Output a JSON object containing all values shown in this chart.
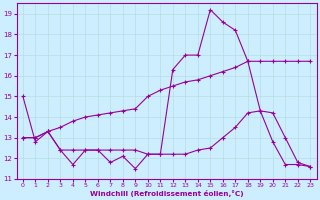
{
  "xlabel": "Windchill (Refroidissement éolien,°C)",
  "bg_color": "#cceeff",
  "line_color": "#990099",
  "grid_color": "#b8dde0",
  "xlim": [
    -0.5,
    23.5
  ],
  "ylim": [
    11,
    19.5
  ],
  "yticks": [
    11,
    12,
    13,
    14,
    15,
    16,
    17,
    18,
    19
  ],
  "xticks": [
    0,
    1,
    2,
    3,
    4,
    5,
    6,
    7,
    8,
    9,
    10,
    11,
    12,
    13,
    14,
    15,
    16,
    17,
    18,
    19,
    20,
    21,
    22,
    23
  ],
  "series1_x": [
    0,
    1,
    2,
    3,
    4,
    5,
    6,
    7,
    8,
    9,
    10,
    11,
    12,
    13,
    14,
    15,
    16,
    17,
    18,
    19,
    20,
    21,
    22,
    23
  ],
  "series1_y": [
    15.0,
    12.8,
    13.3,
    12.4,
    11.7,
    12.4,
    12.4,
    11.8,
    12.1,
    11.5,
    12.2,
    12.2,
    16.3,
    17.0,
    17.0,
    19.2,
    18.6,
    18.2,
    16.7,
    14.3,
    12.8,
    11.7,
    11.7,
    11.6
  ],
  "series2_x": [
    0,
    1,
    2,
    3,
    4,
    5,
    6,
    7,
    8,
    9,
    10,
    11,
    12,
    13,
    14,
    15,
    16,
    17,
    18,
    19,
    20,
    21,
    22,
    23
  ],
  "series2_y": [
    13.0,
    13.0,
    13.3,
    13.5,
    13.8,
    14.0,
    14.1,
    14.2,
    14.3,
    14.4,
    15.0,
    15.3,
    15.5,
    15.7,
    15.8,
    16.0,
    16.2,
    16.4,
    16.7,
    16.7,
    16.7,
    16.7,
    16.7,
    16.7
  ],
  "series3_x": [
    0,
    1,
    2,
    3,
    4,
    5,
    6,
    7,
    8,
    9,
    10,
    11,
    12,
    13,
    14,
    15,
    16,
    17,
    18,
    19,
    20,
    21,
    22,
    23
  ],
  "series3_y": [
    13.0,
    13.0,
    13.3,
    12.4,
    12.4,
    12.4,
    12.4,
    12.4,
    12.4,
    12.4,
    12.2,
    12.2,
    12.2,
    12.2,
    12.4,
    12.5,
    13.0,
    13.5,
    14.2,
    14.3,
    14.2,
    13.0,
    11.8,
    11.6
  ]
}
